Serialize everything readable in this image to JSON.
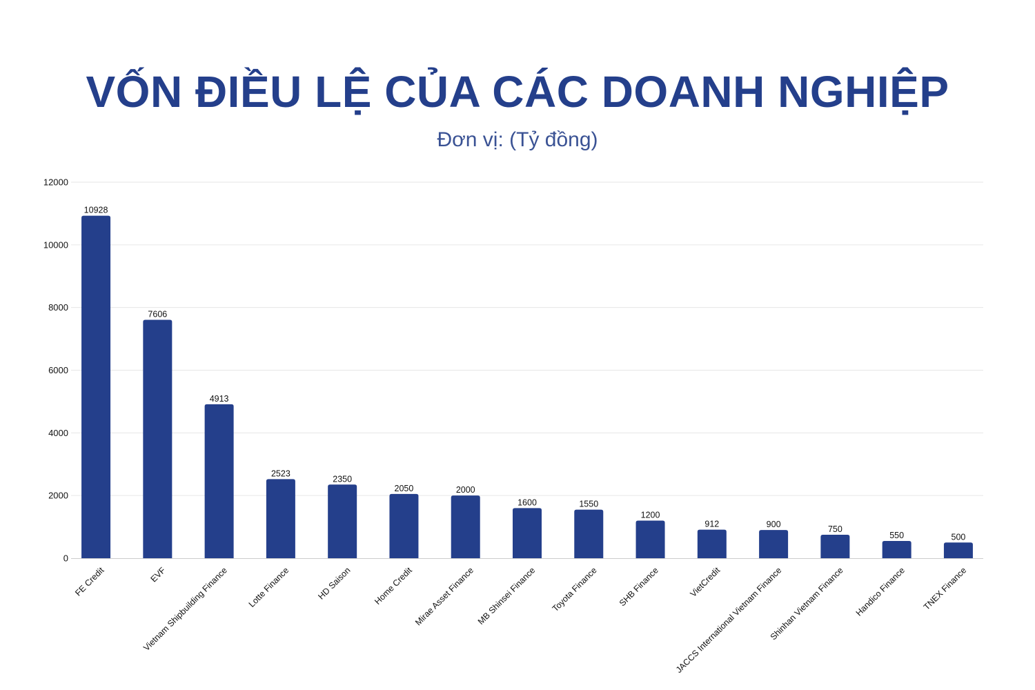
{
  "header": {
    "title": "VỐN ĐIỀU LỆ CỦA CÁC DOANH NGHIỆP",
    "subtitle": "Đơn vị: (Tỷ đồng)"
  },
  "colors": {
    "bar": "#243f8b",
    "title": "#243f8b",
    "gridline": "#e6e6e6",
    "axis": "#cccccc"
  },
  "chart_data": {
    "type": "bar",
    "title": "VỐN ĐIỀU LỆ CỦA CÁC DOANH NGHIỆP",
    "subtitle": "Đơn vị: (Tỷ đồng)",
    "xlabel": "",
    "ylabel": "",
    "ylim": [
      0,
      12000
    ],
    "yticks": [
      0,
      2000,
      4000,
      6000,
      8000,
      10000,
      12000
    ],
    "grid": true,
    "legend": null,
    "data_labels": true,
    "categories": [
      "FE Credit",
      "EVF",
      "Vietnam Shipbuilding Finance",
      "Lotte Finance",
      "HD Saison",
      "Home Credit",
      "Mirae Asset Finance",
      "MB Shinsei Finance",
      "Toyota Finance",
      "SHB Finance",
      "VietCredit",
      "JACCS International Vietnam Finance",
      "Shinhan Vietnam Finance",
      "Handico Finance",
      "TNEX Finance"
    ],
    "values": [
      10928,
      7606,
      4913,
      2523,
      2350,
      2050,
      2000,
      1600,
      1550,
      1200,
      912,
      900,
      750,
      550,
      500
    ]
  }
}
